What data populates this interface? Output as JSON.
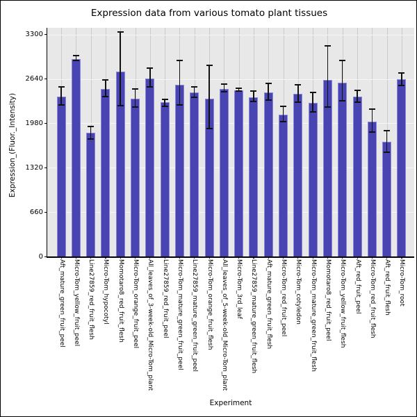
{
  "chart_data": {
    "type": "bar",
    "title": "Expression data from various tomato plant tissues",
    "xlabel": "Experiment",
    "ylabel": "Expression_(Fluor._Intensity)",
    "ylim": [
      0,
      3400
    ],
    "yticks": [
      0,
      660,
      1320,
      1980,
      2640,
      3300
    ],
    "grid": true,
    "legend": "none",
    "plot_bg": "#e8e8e8",
    "bar_color": "#4845b2",
    "bar_edge_color": "#8c86d8",
    "error_color": "#111111",
    "categories": [
      "Aft_mature_green_fruit_peel",
      "Micro-Tom_yellow_fruit_peel",
      "Line27859_red_fruit_flesh",
      "Micro-Tom_hypocotyl",
      "Momotaro8_red_fruit_flesh",
      "Micro-Tom_orange_fruit_peel",
      "All_leaves_of_3-week-old_Micro-Tom_plant",
      "Line27859_red_fruit_peel",
      "Micro-Tom_mature_green_fruit_peel",
      "Line27859_mature_green_fruit_peel",
      "Micro-Tom_orange_fruit_flesh",
      "All_leaves_of_5-week-old_Micro-Tom_plant",
      "Micro-Tom_3rd_leaf",
      "Line27859_mature_green_fruit_flesh",
      "Aft_mature_green_fruit_flesh",
      "Micro-Tom_red_fruit_peel",
      "Micro-Tom_cotyledon",
      "Micro-Tom_mature_green_fruit_flesh",
      "Momotaro8_red_fruit_peel",
      "Micro-Tom_yellow_fruit_flesh",
      "Aft_red_fruit_peel",
      "Micro-Tom_red_fruit_flesh",
      "Aft_red_fruit_flesh",
      "Micro-Tom_root"
    ],
    "values": [
      2375,
      2935,
      1835,
      2495,
      2750,
      2350,
      2650,
      2290,
      2555,
      2440,
      2345,
      2495,
      2475,
      2370,
      2435,
      2105,
      2415,
      2280,
      2625,
      2585,
      2380,
      2005,
      1710,
      2635
    ],
    "error_high": [
      2520,
      2985,
      1930,
      2620,
      3340,
      2490,
      2805,
      2340,
      2910,
      2520,
      2845,
      2560,
      2505,
      2455,
      2570,
      2230,
      2555,
      2435,
      3135,
      2910,
      2475,
      2190,
      1875,
      2730
    ],
    "error_low": [
      2250,
      2910,
      1745,
      2375,
      2240,
      2220,
      2525,
      2230,
      2250,
      2370,
      1905,
      2445,
      2455,
      2305,
      2325,
      2000,
      2295,
      2145,
      2220,
      2320,
      2290,
      1845,
      1550,
      2545
    ]
  }
}
